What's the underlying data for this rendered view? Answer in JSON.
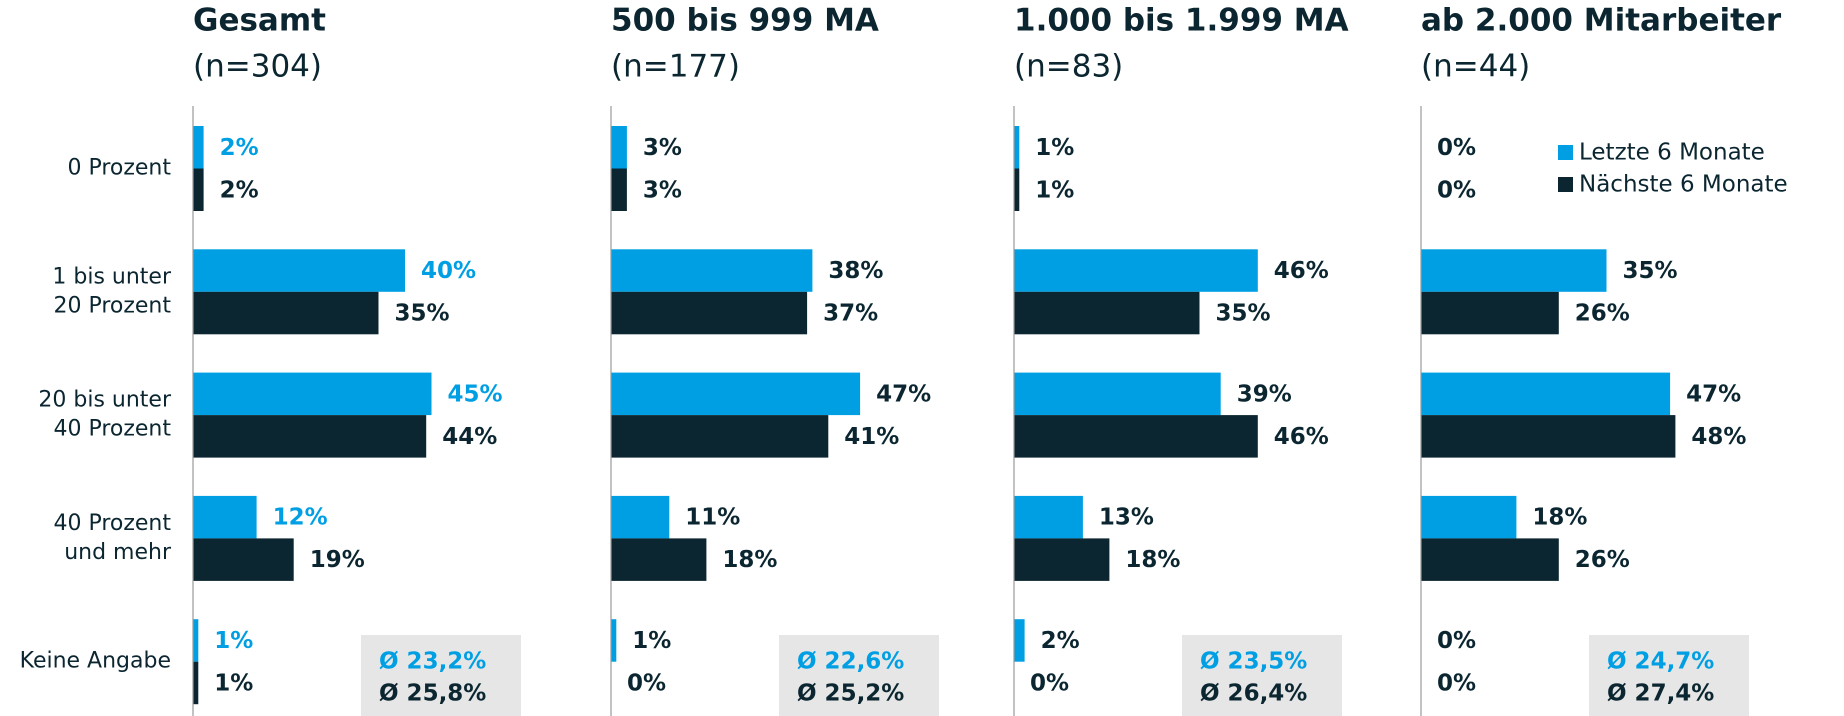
{
  "chart_data": [
    {
      "type": "bar",
      "orientation": "horizontal",
      "title": "Gesamt",
      "subtitle": "(n=304)",
      "categories": [
        [
          "0 Prozent"
        ],
        [
          "1 bis unter",
          "20 Prozent"
        ],
        [
          "20 bis unter",
          "40 Prozent"
        ],
        [
          "40 Prozent",
          "und mehr"
        ],
        [
          "Keine Angabe"
        ]
      ],
      "series": [
        {
          "name": "Letzte 6 Monate",
          "color": "#009fe3",
          "label_color": "#009fe3",
          "values": [
            2,
            40,
            45,
            12,
            1
          ],
          "value_labels": [
            "2%",
            "40%",
            "45%",
            "12%",
            "1%"
          ]
        },
        {
          "name": "Nächste 6 Monate",
          "color": "#0b2630",
          "label_color": "#0b2630",
          "values": [
            2,
            35,
            44,
            19,
            1
          ],
          "value_labels": [
            "2%",
            "35%",
            "44%",
            "19%",
            "1%"
          ]
        }
      ],
      "annotations": [
        "Ø 23,2%",
        "Ø 25,8%"
      ]
    },
    {
      "type": "bar",
      "orientation": "horizontal",
      "title": "500 bis 999 MA",
      "subtitle": "(n=177)",
      "series": [
        {
          "name": "Letzte 6 Monate",
          "color": "#009fe3",
          "label_color": "#0b2630",
          "values": [
            3,
            38,
            47,
            11,
            1
          ],
          "value_labels": [
            "3%",
            "38%",
            "47%",
            "11%",
            "1%"
          ]
        },
        {
          "name": "Nächste 6 Monate",
          "color": "#0b2630",
          "label_color": "#0b2630",
          "values": [
            3,
            37,
            41,
            18,
            0
          ],
          "value_labels": [
            "3%",
            "37%",
            "41%",
            "18%",
            "0%"
          ]
        }
      ],
      "annotations": [
        "Ø 22,6%",
        "Ø 25,2%"
      ]
    },
    {
      "type": "bar",
      "orientation": "horizontal",
      "title": "1.000 bis 1.999 MA",
      "subtitle": "(n=83)",
      "series": [
        {
          "name": "Letzte 6 Monate",
          "color": "#009fe3",
          "label_color": "#0b2630",
          "values": [
            1,
            46,
            39,
            13,
            2
          ],
          "value_labels": [
            "1%",
            "46%",
            "39%",
            "13%",
            "2%"
          ]
        },
        {
          "name": "Nächste 6 Monate",
          "color": "#0b2630",
          "label_color": "#0b2630",
          "values": [
            1,
            35,
            46,
            18,
            0
          ],
          "value_labels": [
            "1%",
            "35%",
            "46%",
            "18%",
            "0%"
          ]
        }
      ],
      "annotations": [
        "Ø 23,5%",
        "Ø 26,4%"
      ]
    },
    {
      "type": "bar",
      "orientation": "horizontal",
      "title": "ab 2.000 Mitarbeiter",
      "subtitle": "(n=44)",
      "series": [
        {
          "name": "Letzte 6 Monate",
          "color": "#009fe3",
          "label_color": "#0b2630",
          "values": [
            0,
            35,
            47,
            18,
            0
          ],
          "value_labels": [
            "0%",
            "35%",
            "47%",
            "18%",
            "0%"
          ]
        },
        {
          "name": "Nächste 6 Monate",
          "color": "#0b2630",
          "label_color": "#0b2630",
          "values": [
            0,
            26,
            48,
            26,
            0
          ],
          "value_labels": [
            "0%",
            "26%",
            "48%",
            "26%",
            "0%"
          ]
        }
      ],
      "annotations": [
        "Ø 24,7%",
        "Ø 27,4%"
      ],
      "legend": "upper right"
    }
  ]
}
